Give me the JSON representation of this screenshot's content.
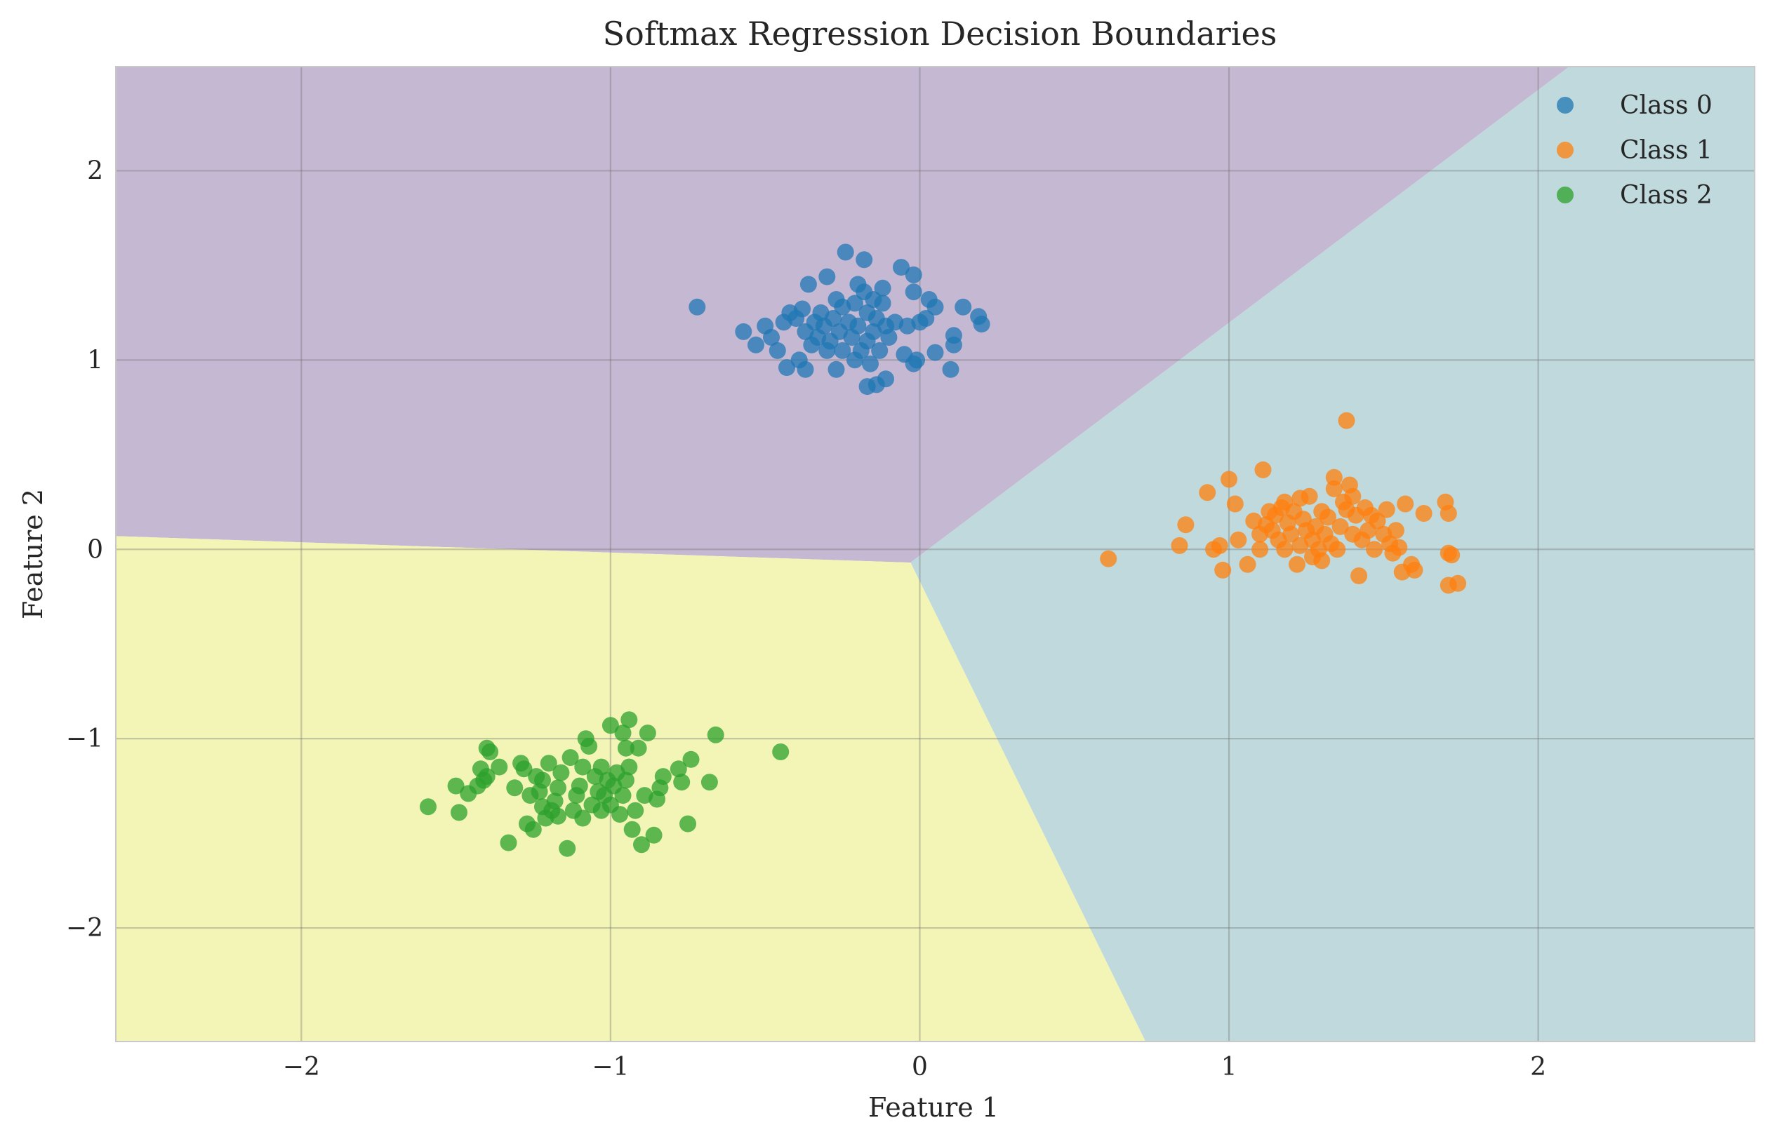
{
  "chart_data": {
    "type": "scatter",
    "title": "Softmax Regression Decision Boundaries",
    "xlabel": "Feature 1",
    "ylabel": "Feature 2",
    "xlim": [
      -2.6,
      2.7
    ],
    "ylim": [
      -2.6,
      2.55
    ],
    "x_ticks": [
      -2,
      -1,
      0,
      1,
      2
    ],
    "y_ticks": [
      -2,
      -1,
      0,
      1,
      2
    ],
    "x_tick_labels": [
      "−2",
      "−1",
      "0",
      "1",
      "2"
    ],
    "y_tick_labels": [
      "−2",
      "−1",
      "0",
      "1",
      "2"
    ],
    "grid": true,
    "legend_position": "top-right",
    "regions": [
      {
        "class": 0,
        "color": "#c5b8d2",
        "polygon": [
          [
            -2.6,
            2.55
          ],
          [
            2.1,
            2.55
          ],
          [
            -0.03,
            -0.07
          ],
          [
            -2.6,
            0.07
          ]
        ]
      },
      {
        "class": 1,
        "color": "#bfd9dc",
        "polygon": [
          [
            2.1,
            2.55
          ],
          [
            2.7,
            2.55
          ],
          [
            2.7,
            -2.6
          ],
          [
            0.73,
            -2.6
          ],
          [
            -0.03,
            -0.07
          ]
        ]
      },
      {
        "class": 2,
        "color": "#f2f5b5",
        "polygon": [
          [
            -2.6,
            0.07
          ],
          [
            -0.03,
            -0.07
          ],
          [
            0.73,
            -2.6
          ],
          [
            -2.6,
            -2.6
          ]
        ]
      }
    ],
    "series": [
      {
        "name": "Class 0",
        "color": "#1f77b4",
        "points": [
          [
            -0.72,
            1.28
          ],
          [
            -0.57,
            1.15
          ],
          [
            -0.53,
            1.08
          ],
          [
            -0.5,
            1.18
          ],
          [
            -0.48,
            1.12
          ],
          [
            -0.46,
            1.05
          ],
          [
            -0.44,
            1.2
          ],
          [
            -0.43,
            0.96
          ],
          [
            -0.42,
            1.25
          ],
          [
            -0.4,
            1.22
          ],
          [
            -0.39,
            1.0
          ],
          [
            -0.38,
            1.27
          ],
          [
            -0.37,
            1.15
          ],
          [
            -0.37,
            0.95
          ],
          [
            -0.36,
            1.4
          ],
          [
            -0.35,
            1.08
          ],
          [
            -0.34,
            1.2
          ],
          [
            -0.33,
            1.12
          ],
          [
            -0.32,
            1.25
          ],
          [
            -0.31,
            1.18
          ],
          [
            -0.3,
            1.44
          ],
          [
            -0.3,
            1.05
          ],
          [
            -0.29,
            1.1
          ],
          [
            -0.28,
            1.22
          ],
          [
            -0.27,
            1.32
          ],
          [
            -0.27,
            0.95
          ],
          [
            -0.26,
            1.15
          ],
          [
            -0.25,
            1.28
          ],
          [
            -0.25,
            1.05
          ],
          [
            -0.24,
            1.57
          ],
          [
            -0.23,
            1.2
          ],
          [
            -0.22,
            1.12
          ],
          [
            -0.21,
            1.3
          ],
          [
            -0.21,
            1.0
          ],
          [
            -0.2,
            1.4
          ],
          [
            -0.2,
            1.18
          ],
          [
            -0.19,
            1.05
          ],
          [
            -0.18,
            1.53
          ],
          [
            -0.18,
            1.36
          ],
          [
            -0.17,
            1.25
          ],
          [
            -0.17,
            1.1
          ],
          [
            -0.17,
            0.86
          ],
          [
            -0.16,
            0.98
          ],
          [
            -0.15,
            1.32
          ],
          [
            -0.15,
            1.15
          ],
          [
            -0.14,
            1.22
          ],
          [
            -0.14,
            0.87
          ],
          [
            -0.13,
            1.05
          ],
          [
            -0.12,
            1.3
          ],
          [
            -0.12,
            1.38
          ],
          [
            -0.11,
            1.18
          ],
          [
            -0.11,
            0.9
          ],
          [
            -0.1,
            1.12
          ],
          [
            -0.08,
            1.2
          ],
          [
            -0.06,
            1.49
          ],
          [
            -0.05,
            1.03
          ],
          [
            -0.04,
            1.18
          ],
          [
            -0.02,
            1.45
          ],
          [
            -0.02,
            1.36
          ],
          [
            -0.02,
            0.98
          ],
          [
            -0.01,
            1.0
          ],
          [
            0.0,
            1.2
          ],
          [
            0.02,
            1.22
          ],
          [
            0.03,
            1.32
          ],
          [
            0.05,
            1.28
          ],
          [
            0.05,
            1.04
          ],
          [
            0.1,
            0.95
          ],
          [
            0.11,
            1.13
          ],
          [
            0.11,
            1.08
          ],
          [
            0.14,
            1.28
          ],
          [
            0.19,
            1.23
          ],
          [
            0.2,
            1.19
          ]
        ]
      },
      {
        "name": "Class 1",
        "color": "#ff7f0e",
        "points": [
          [
            0.61,
            -0.05
          ],
          [
            0.84,
            0.02
          ],
          [
            0.86,
            0.13
          ],
          [
            0.93,
            0.3
          ],
          [
            0.95,
            0.0
          ],
          [
            0.97,
            0.02
          ],
          [
            0.98,
            -0.11
          ],
          [
            1.0,
            0.37
          ],
          [
            1.02,
            0.24
          ],
          [
            1.03,
            0.05
          ],
          [
            1.06,
            -0.08
          ],
          [
            1.08,
            0.15
          ],
          [
            1.1,
            0.08
          ],
          [
            1.1,
            0.0
          ],
          [
            1.11,
            0.42
          ],
          [
            1.12,
            0.13
          ],
          [
            1.13,
            0.2
          ],
          [
            1.14,
            0.1
          ],
          [
            1.15,
            0.18
          ],
          [
            1.16,
            0.05
          ],
          [
            1.17,
            0.22
          ],
          [
            1.18,
            0.0
          ],
          [
            1.18,
            0.25
          ],
          [
            1.19,
            0.14
          ],
          [
            1.2,
            0.08
          ],
          [
            1.21,
            0.2
          ],
          [
            1.22,
            -0.08
          ],
          [
            1.23,
            0.02
          ],
          [
            1.23,
            0.27
          ],
          [
            1.24,
            0.16
          ],
          [
            1.25,
            0.1
          ],
          [
            1.26,
            0.28
          ],
          [
            1.27,
            -0.04
          ],
          [
            1.27,
            0.05
          ],
          [
            1.28,
            0.12
          ],
          [
            1.29,
            0.0
          ],
          [
            1.3,
            0.2
          ],
          [
            1.3,
            -0.06
          ],
          [
            1.31,
            0.08
          ],
          [
            1.32,
            0.17
          ],
          [
            1.33,
            0.03
          ],
          [
            1.34,
            0.32
          ],
          [
            1.34,
            0.38
          ],
          [
            1.35,
            0.0
          ],
          [
            1.36,
            0.12
          ],
          [
            1.37,
            0.25
          ],
          [
            1.38,
            0.21
          ],
          [
            1.38,
            0.68
          ],
          [
            1.39,
            0.34
          ],
          [
            1.4,
            0.28
          ],
          [
            1.4,
            0.08
          ],
          [
            1.41,
            0.18
          ],
          [
            1.42,
            -0.14
          ],
          [
            1.43,
            0.05
          ],
          [
            1.44,
            0.22
          ],
          [
            1.45,
            0.1
          ],
          [
            1.46,
            0.18
          ],
          [
            1.47,
            0.0
          ],
          [
            1.48,
            0.15
          ],
          [
            1.5,
            0.08
          ],
          [
            1.51,
            0.21
          ],
          [
            1.52,
            0.03
          ],
          [
            1.53,
            -0.02
          ],
          [
            1.54,
            0.1
          ],
          [
            1.55,
            0.01
          ],
          [
            1.56,
            -0.12
          ],
          [
            1.57,
            0.24
          ],
          [
            1.59,
            -0.08
          ],
          [
            1.6,
            -0.11
          ],
          [
            1.63,
            0.19
          ],
          [
            1.7,
            0.25
          ],
          [
            1.71,
            0.19
          ],
          [
            1.71,
            -0.02
          ],
          [
            1.71,
            -0.19
          ],
          [
            1.72,
            -0.03
          ],
          [
            1.74,
            -0.18
          ]
        ]
      },
      {
        "name": "Class 2",
        "color": "#2ca02c",
        "points": [
          [
            -1.59,
            -1.36
          ],
          [
            -1.5,
            -1.25
          ],
          [
            -1.49,
            -1.39
          ],
          [
            -1.46,
            -1.29
          ],
          [
            -1.43,
            -1.25
          ],
          [
            -1.42,
            -1.16
          ],
          [
            -1.41,
            -1.22
          ],
          [
            -1.4,
            -1.05
          ],
          [
            -1.4,
            -1.2
          ],
          [
            -1.39,
            -1.07
          ],
          [
            -1.36,
            -1.15
          ],
          [
            -1.33,
            -1.55
          ],
          [
            -1.31,
            -1.26
          ],
          [
            -1.29,
            -1.13
          ],
          [
            -1.28,
            -1.16
          ],
          [
            -1.27,
            -1.45
          ],
          [
            -1.26,
            -1.3
          ],
          [
            -1.25,
            -1.48
          ],
          [
            -1.24,
            -1.2
          ],
          [
            -1.23,
            -1.28
          ],
          [
            -1.22,
            -1.36
          ],
          [
            -1.22,
            -1.22
          ],
          [
            -1.21,
            -1.42
          ],
          [
            -1.2,
            -1.13
          ],
          [
            -1.19,
            -1.38
          ],
          [
            -1.18,
            -1.33
          ],
          [
            -1.17,
            -1.26
          ],
          [
            -1.17,
            -1.41
          ],
          [
            -1.16,
            -1.18
          ],
          [
            -1.14,
            -1.58
          ],
          [
            -1.13,
            -1.1
          ],
          [
            -1.12,
            -1.38
          ],
          [
            -1.11,
            -1.3
          ],
          [
            -1.1,
            -1.25
          ],
          [
            -1.09,
            -1.15
          ],
          [
            -1.09,
            -1.42
          ],
          [
            -1.08,
            -1.0
          ],
          [
            -1.07,
            -1.04
          ],
          [
            -1.06,
            -1.35
          ],
          [
            -1.05,
            -1.2
          ],
          [
            -1.04,
            -1.28
          ],
          [
            -1.03,
            -1.15
          ],
          [
            -1.03,
            -1.38
          ],
          [
            -1.02,
            -1.3
          ],
          [
            -1.01,
            -1.22
          ],
          [
            -1.0,
            -0.93
          ],
          [
            -1.0,
            -1.35
          ],
          [
            -0.99,
            -1.25
          ],
          [
            -0.98,
            -1.18
          ],
          [
            -0.97,
            -1.4
          ],
          [
            -0.96,
            -0.97
          ],
          [
            -0.96,
            -1.3
          ],
          [
            -0.95,
            -1.22
          ],
          [
            -0.95,
            -1.05
          ],
          [
            -0.94,
            -1.15
          ],
          [
            -0.94,
            -0.9
          ],
          [
            -0.93,
            -1.48
          ],
          [
            -0.92,
            -1.38
          ],
          [
            -0.91,
            -1.05
          ],
          [
            -0.9,
            -1.56
          ],
          [
            -0.89,
            -1.3
          ],
          [
            -0.88,
            -0.97
          ],
          [
            -0.86,
            -1.51
          ],
          [
            -0.85,
            -1.32
          ],
          [
            -0.84,
            -1.26
          ],
          [
            -0.83,
            -1.2
          ],
          [
            -0.78,
            -1.16
          ],
          [
            -0.77,
            -1.23
          ],
          [
            -0.75,
            -1.45
          ],
          [
            -0.74,
            -1.11
          ],
          [
            -0.68,
            -1.23
          ],
          [
            -0.66,
            -0.98
          ],
          [
            -0.45,
            -1.07
          ]
        ]
      }
    ]
  }
}
